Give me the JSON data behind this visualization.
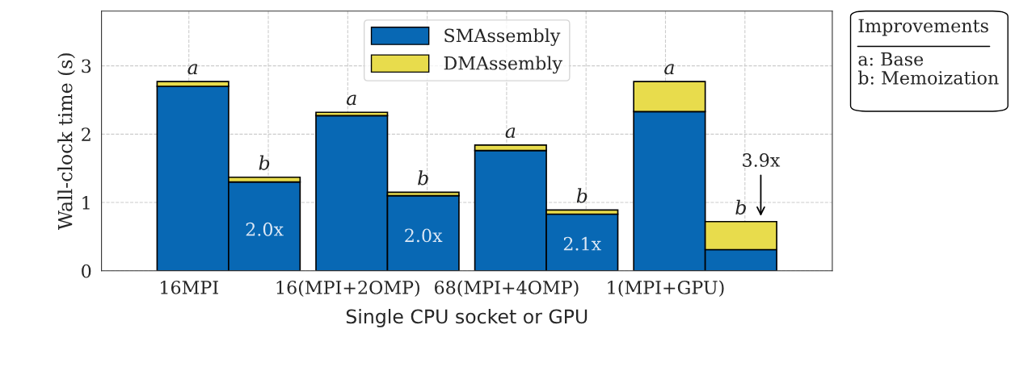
{
  "chart_data": {
    "type": "bar",
    "stacked": true,
    "categories": [
      "16MPI",
      null,
      "16(MPI+2OMP)",
      null,
      "68(MPI+4OMP)",
      null,
      "1(MPI+GPU)",
      null
    ],
    "series": [
      {
        "name": "SMAssembly",
        "color": "#0868b4",
        "values": [
          2.7,
          1.3,
          2.27,
          1.1,
          1.76,
          0.83,
          2.33,
          0.31
        ]
      },
      {
        "name": "DMAssembly",
        "color": "#e8dc4c",
        "values": [
          0.07,
          0.07,
          0.05,
          0.05,
          0.08,
          0.06,
          0.44,
          0.41
        ],
        "value_labels": [
          "a",
          "b",
          "a",
          "b",
          "a",
          "b",
          "a",
          "b"
        ]
      }
    ],
    "ylabel": "Wall-clock time (s)",
    "xlabel": "Single CPU socket or GPU",
    "ylim": [
      0,
      3.8
    ],
    "yticks": [
      0,
      1,
      2,
      3
    ],
    "grid": true,
    "legend": "top",
    "annotations": [
      "2.0x",
      "2.0x",
      "2.1x",
      "3.9x",
      "Improvements",
      "a: Base",
      "b: Memoization"
    ]
  }
}
